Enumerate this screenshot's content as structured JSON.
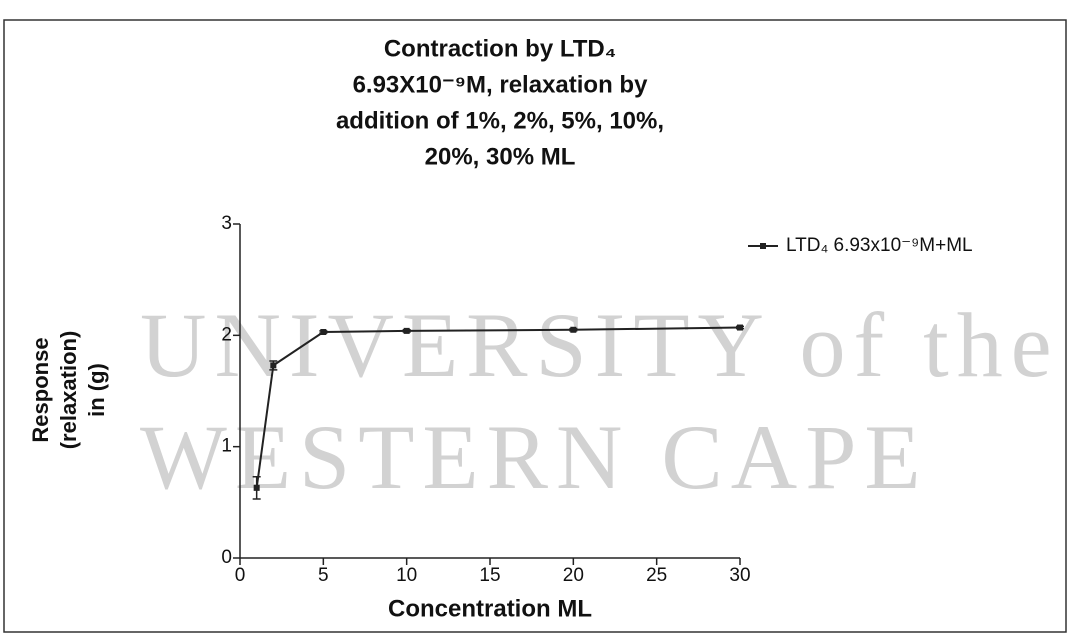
{
  "chart_data": {
    "type": "line",
    "title": [
      "Contraction by LTD₄",
      "6.93X10⁻⁹M, relaxation by",
      "addition of 1%, 2%, 5%, 10%,",
      "20%, 30% ML"
    ],
    "watermark": [
      "UNIVERSITY of the",
      "WESTERN CAPE"
    ],
    "xlabel": "Concentration ML",
    "ylabel": [
      "Response",
      "(relaxation)",
      "in (g)"
    ],
    "x": [
      1,
      2,
      5,
      10,
      20,
      30
    ],
    "series": [
      {
        "name": "LTD₄ 6.93x10⁻⁹M+ML",
        "color": "#222222",
        "values": [
          0.63,
          1.73,
          2.03,
          2.04,
          2.05,
          2.07
        ],
        "errors": [
          0.1,
          0.04,
          0.01,
          0.01,
          0.01,
          0.01
        ]
      }
    ],
    "xlim": [
      0,
      30
    ],
    "xticks": [
      0,
      5,
      10,
      15,
      20,
      25,
      30
    ],
    "ylim": [
      0,
      3
    ],
    "yticks": [
      0,
      1,
      2,
      3
    ],
    "legend": "top-right"
  }
}
